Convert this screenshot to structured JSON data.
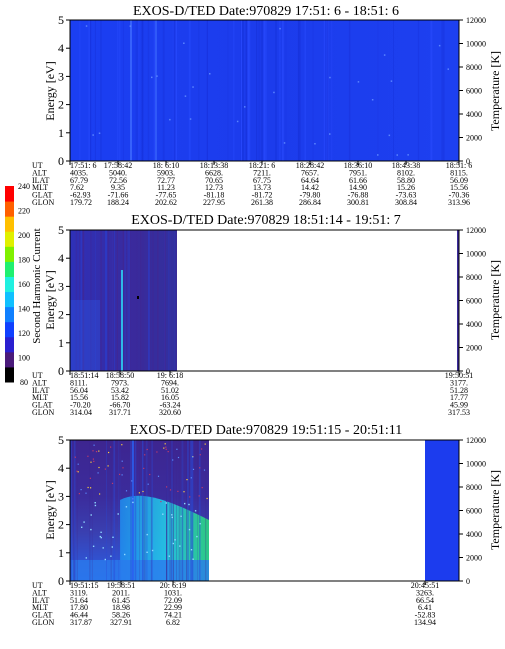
{
  "colors": {
    "spectrogram_blue": "#1c3cf0",
    "spectrogram_dark": "#3a1f8a",
    "spectrogram_mid": "#2a55e8",
    "spectrogram_cyan": "#22c3f0",
    "spectrogram_green": "#2be07a"
  },
  "colorbar": {
    "label": "Second Harmonic Current",
    "ticks": [
      "80",
      "100",
      "120",
      "140",
      "160",
      "180",
      "200",
      "220",
      "240"
    ],
    "colors": [
      "#000000",
      "#4a1a7a",
      "#2a1fd0",
      "#1040ff",
      "#1080ff",
      "#10c0ff",
      "#20f0e0",
      "#20f070",
      "#80f000",
      "#e0f000",
      "#ffc000",
      "#ff6000",
      "#ff0000"
    ]
  },
  "chart_data": [
    {
      "type": "heatmap",
      "title": "EXOS-D/TED   Date:970829  17:51: 6 - 18:51: 6",
      "ylabel": "Energy [eV]",
      "y2label": "Temperature [K]",
      "ylim": [
        0,
        5
      ],
      "y2lim": [
        0,
        12000
      ],
      "yticks": [
        "0",
        "1",
        "2",
        "3",
        "4",
        "5"
      ],
      "y2ticks": [
        "0",
        "2000",
        "4000",
        "6000",
        "8000",
        "10000",
        "12000"
      ],
      "row_labels": [
        "UT",
        "ALT",
        "ILAT",
        "MLT",
        "GLAT",
        "GLON"
      ],
      "columns": [
        [
          "17:51: 6",
          "4035.",
          "67.79",
          "7.62",
          "-62.93",
          "179.72"
        ],
        [
          "17:58:42",
          "5040.",
          "72.56",
          "9.35",
          "-71.66",
          "188.24"
        ],
        [
          "18: 6:10",
          "5903.",
          "72.77",
          "11.23",
          "-77.65",
          "202.62"
        ],
        [
          "18:13:38",
          "6628.",
          "70.65",
          "12.73",
          "-81.18",
          "227.95"
        ],
        [
          "18:21: 6",
          "7211.",
          "67.75",
          "13.73",
          "-81.72",
          "261.38"
        ],
        [
          "18:28:42",
          "7657.",
          "64.64",
          "14.42",
          "-79.80",
          "286.84"
        ],
        [
          "18:36:10",
          "7951.",
          "61.66",
          "14.90",
          "-76.88",
          "300.81"
        ],
        [
          "18:43:38",
          "8102.",
          "58.80",
          "15.26",
          "-73.63",
          "308.84"
        ],
        [
          "18:51: 6",
          "8115.",
          "56.09",
          "15.56",
          "-70.36",
          "313.96"
        ]
      ],
      "data_extent": [
        0,
        1
      ]
    },
    {
      "type": "heatmap",
      "title": "EXOS-D/TED   Date:970829  18:51:14 - 19:51: 7",
      "ylabel": "Energy [eV]",
      "y2label": "Temperature [K]",
      "ylim": [
        0,
        5
      ],
      "y2lim": [
        0,
        12000
      ],
      "yticks": [
        "0",
        "1",
        "2",
        "3",
        "4",
        "5"
      ],
      "y2ticks": [
        "0",
        "2000",
        "4000",
        "6000",
        "8000",
        "10000",
        "12000"
      ],
      "row_labels": [
        "UT",
        "ALT",
        "ILAT",
        "MLT",
        "GLAT",
        "GLON"
      ],
      "columns": [
        [
          "18:51:14",
          "8111.",
          "56.04",
          "15.56",
          "-70.20",
          "314.04"
        ],
        [
          "18:58:50",
          "7973.",
          "53.42",
          "15.82",
          "-66.70",
          "317.71"
        ],
        [
          "19: 6:18",
          "7694.",
          "51.02",
          "16.05",
          "-63.24",
          "320.60"
        ],
        [
          "19:50:51",
          "3177.",
          "51.28",
          "17.77",
          "45.99",
          "317.53"
        ]
      ],
      "data_extent": [
        0,
        0.28
      ]
    },
    {
      "type": "heatmap",
      "title": "EXOS-D/TED   Date:970829  19:51:15 - 20:51:11",
      "ylabel": "Energy [eV]",
      "y2label": "Temperature [K]",
      "ylim": [
        0,
        5
      ],
      "y2lim": [
        0,
        12000
      ],
      "yticks": [
        "0",
        "1",
        "2",
        "3",
        "4",
        "5"
      ],
      "y2ticks": [
        "0",
        "2000",
        "4000",
        "6000",
        "8000",
        "10000",
        "12000"
      ],
      "row_labels": [
        "UT",
        "ALT",
        "ILAT",
        "MLT",
        "GLAT",
        "GLON"
      ],
      "columns": [
        [
          "19:51:15",
          "3119.",
          "51.64",
          "17.80",
          "46.44",
          "317.87"
        ],
        [
          "19:58:51",
          "2011.",
          "61.45",
          "18.98",
          "58.26",
          "327.91"
        ],
        [
          "20: 6:19",
          "1031.",
          "72.09",
          "22.99",
          "74.21",
          "6.82"
        ],
        [
          "20:45:51",
          "3263.",
          "66.54",
          "6.41",
          "-52.83",
          "134.94"
        ]
      ],
      "data_extent": [
        0,
        0.4
      ]
    }
  ]
}
